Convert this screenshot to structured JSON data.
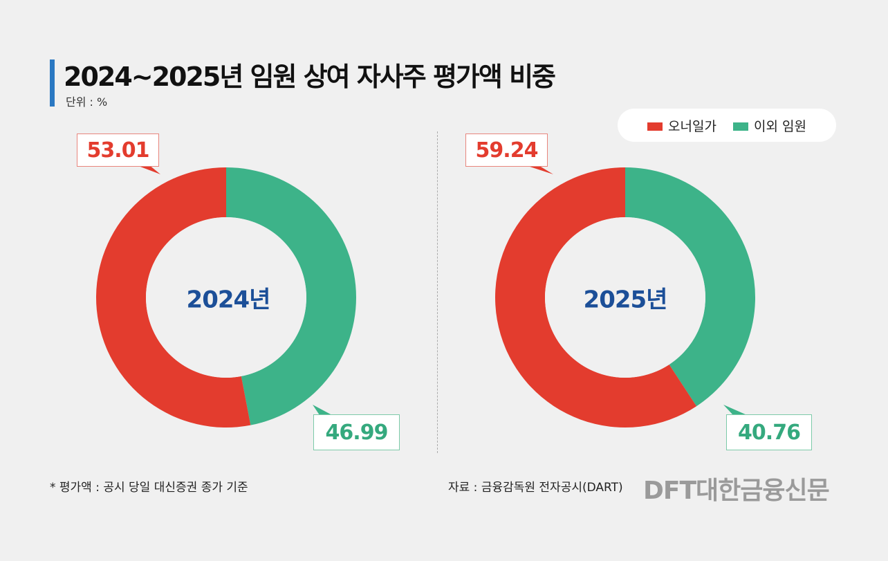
{
  "chart_data": [
    {
      "type": "pie",
      "title": "2024~2025년 임원 상여 자사주 평가액 비중",
      "unit": "단위 : %",
      "center_label": "2024년",
      "slices": [
        {
          "name": "오너일가",
          "value": 53.01,
          "color": "#e33c2e"
        },
        {
          "name": "이외 임원",
          "value": 46.99,
          "color": "#3db389"
        }
      ]
    },
    {
      "type": "pie",
      "center_label": "2025년",
      "slices": [
        {
          "name": "오너일가",
          "value": 59.24,
          "color": "#e33c2e"
        },
        {
          "name": "이외 임원",
          "value": 40.76,
          "color": "#3db389"
        }
      ]
    }
  ],
  "title": "2024~2025년 임원 상여 자사주 평가액 비중",
  "unit": "단위 : %",
  "legend": [
    "오너일가",
    "이외 임원"
  ],
  "callouts": {
    "l_red": "53.01",
    "l_green": "46.99",
    "r_red": "59.24",
    "r_green": "40.76"
  },
  "footnote": "* 평가액 : 공시 당일 대신증권 종가 기준",
  "source": "자료 : 금융감독원 전자공시(DART)",
  "logo": "DFT대한금융신문"
}
